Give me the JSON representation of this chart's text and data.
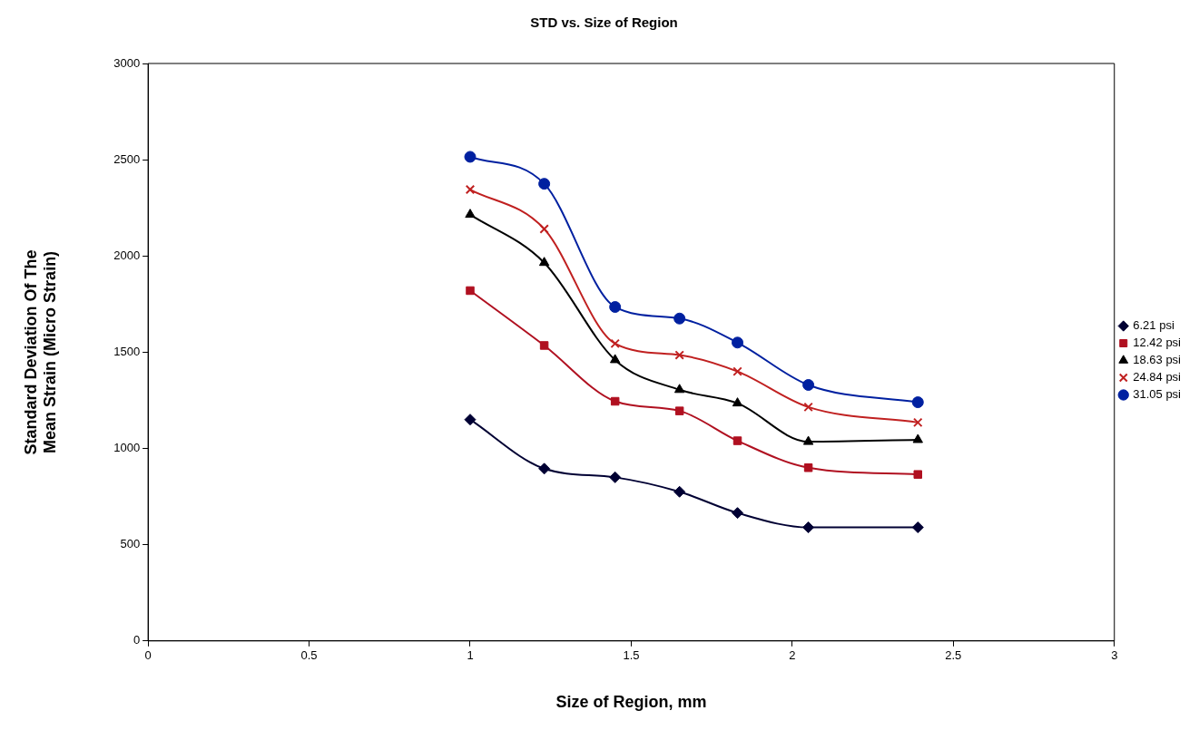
{
  "chart_data": {
    "type": "line",
    "title": "STD vs. Size of Region",
    "xlabel": "Size of Region, mm",
    "ylabel": "Standard Deviation Of The Mean Strain (Micro Strain)",
    "x": [
      1.0,
      1.23,
      1.45,
      1.65,
      1.83,
      2.05,
      2.39
    ],
    "series": [
      {
        "name": "6.21 psi",
        "color": "#000033",
        "marker": "diamond",
        "values": [
          1150,
          895,
          850,
          775,
          665,
          590,
          590
        ]
      },
      {
        "name": "12.42 psi",
        "color": "#b01020",
        "marker": "square",
        "values": [
          1820,
          1535,
          1245,
          1195,
          1040,
          900,
          865
        ]
      },
      {
        "name": "18.63 psi",
        "color": "#000000",
        "marker": "triangle",
        "values": [
          2215,
          1965,
          1460,
          1305,
          1235,
          1035,
          1045
        ]
      },
      {
        "name": "24.84 psi",
        "color": "#c02020",
        "marker": "cross",
        "values": [
          2345,
          2140,
          1545,
          1485,
          1400,
          1215,
          1135
        ]
      },
      {
        "name": "31.05 psi",
        "color": "#0020a0",
        "marker": "circle",
        "values": [
          2515,
          2375,
          1735,
          1675,
          1550,
          1330,
          1240
        ]
      }
    ],
    "xlim": [
      0,
      3
    ],
    "xticks": [
      0,
      0.5,
      1,
      1.5,
      2,
      2.5,
      3
    ],
    "ylim": [
      0,
      3000
    ],
    "yticks": [
      0,
      500,
      1000,
      1500,
      2000,
      2500,
      3000
    ],
    "grid": false,
    "legend": "right",
    "line_style": "solid"
  }
}
